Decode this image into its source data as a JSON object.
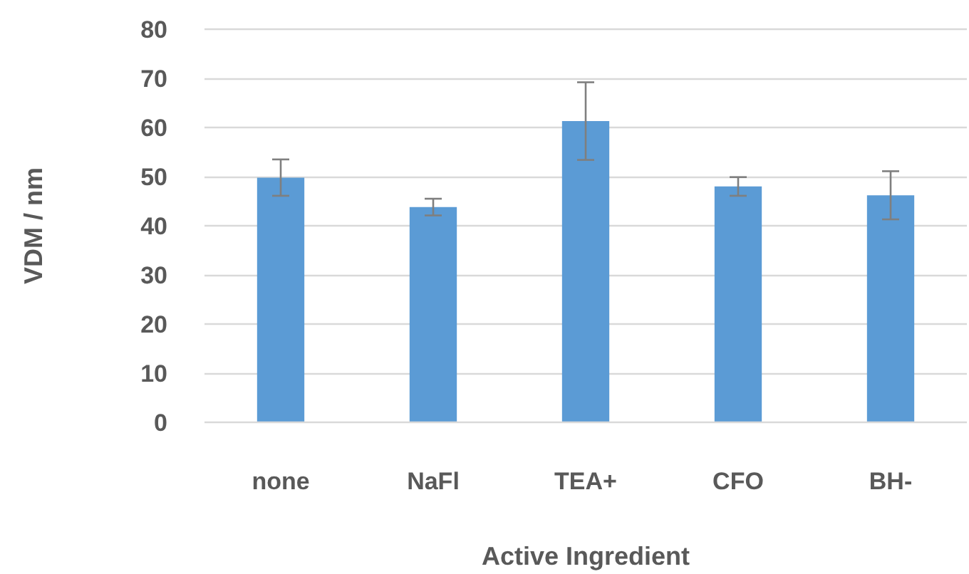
{
  "chart_data": {
    "type": "bar",
    "xlabel": "Active Ingredient",
    "ylabel": "VDM / nm",
    "categories": [
      "none",
      "NaFl",
      "TEA+",
      "CFO",
      "BH-"
    ],
    "values": [
      49.8,
      43.8,
      61.3,
      48.0,
      46.2
    ],
    "errors": [
      3.7,
      1.7,
      7.9,
      1.9,
      4.9
    ],
    "color": "#5b9bd5",
    "ylim": [
      0,
      80
    ],
    "yticks": [
      0,
      10,
      20,
      30,
      40,
      50,
      60,
      70,
      80
    ],
    "grid": "y"
  }
}
